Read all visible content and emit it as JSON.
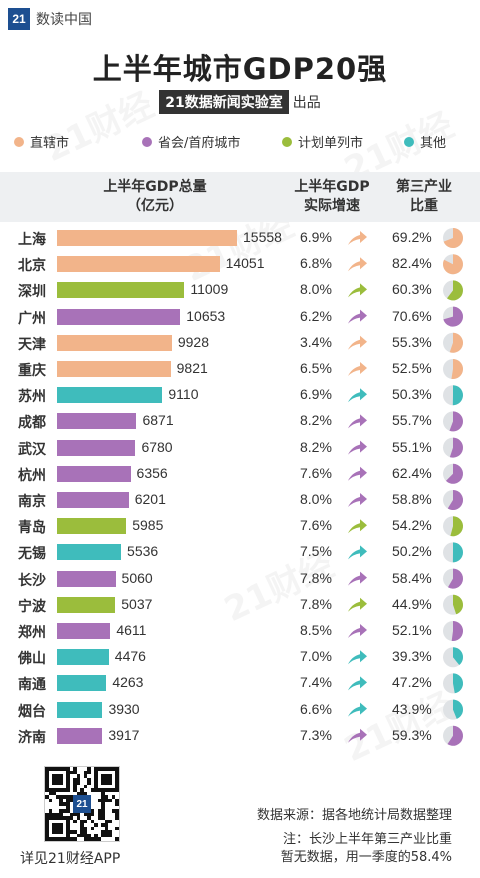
{
  "header": {
    "logo": "21",
    "brand": "数读中国",
    "title": "上半年城市GDP20强",
    "sub_badge": "21数据新闻实验室",
    "sub_suffix": "出品"
  },
  "legend": [
    {
      "label": "直辖市",
      "color": "#f2b48a"
    },
    {
      "label": "省会/首府城市",
      "color": "#a872b8"
    },
    {
      "label": "计划单列市",
      "color": "#9bbd3c"
    },
    {
      "label": "其他",
      "color": "#3fbcbc"
    }
  ],
  "columns": {
    "gdp_line1": "上半年GDP总量",
    "gdp_line2": "（亿元）",
    "growth_line1": "上半年GDP",
    "growth_line2": "实际增速",
    "share_line1": "第三产业",
    "share_line2": "比重"
  },
  "chart_data": {
    "type": "bar",
    "categories": [
      "上海",
      "北京",
      "深圳",
      "广州",
      "天津",
      "重庆",
      "苏州",
      "成都",
      "武汉",
      "杭州",
      "南京",
      "青岛",
      "无锡",
      "长沙",
      "宁波",
      "郑州",
      "佛山",
      "南通",
      "烟台",
      "济南"
    ],
    "values": [
      15558,
      14051,
      11009,
      10653,
      9928,
      9821,
      9110,
      6871,
      6780,
      6356,
      6201,
      5985,
      5536,
      5060,
      5037,
      4611,
      4476,
      4263,
      3930,
      3917
    ],
    "growth": [
      "6.9%",
      "6.8%",
      "8.0%",
      "6.2%",
      "3.4%",
      "6.5%",
      "6.9%",
      "8.2%",
      "8.2%",
      "7.6%",
      "8.0%",
      "7.6%",
      "7.5%",
      "7.8%",
      "7.8%",
      "8.5%",
      "7.0%",
      "7.4%",
      "6.6%",
      "7.3%"
    ],
    "tertiary_share": [
      "69.2%",
      "82.4%",
      "60.3%",
      "70.6%",
      "55.3%",
      "52.5%",
      "50.3%",
      "55.7%",
      "55.1%",
      "62.4%",
      "58.8%",
      "54.2%",
      "50.2%",
      "58.4%",
      "44.9%",
      "52.1%",
      "39.3%",
      "47.2%",
      "43.9%",
      "59.3%"
    ],
    "group": [
      "直辖市",
      "直辖市",
      "计划单列市",
      "省会/首府城市",
      "直辖市",
      "直辖市",
      "其他",
      "省会/首府城市",
      "省会/首府城市",
      "省会/首府城市",
      "省会/首府城市",
      "计划单列市",
      "其他",
      "省会/首府城市",
      "计划单列市",
      "省会/首府城市",
      "其他",
      "其他",
      "其他",
      "省会/首府城市"
    ]
  },
  "footer": {
    "source": "数据来源：据各地统计局数据整理",
    "note1": "注：长沙上半年第三产业比重",
    "note2": "暂无数据，用一季度的58.4%",
    "app": "详见21财经APP"
  }
}
